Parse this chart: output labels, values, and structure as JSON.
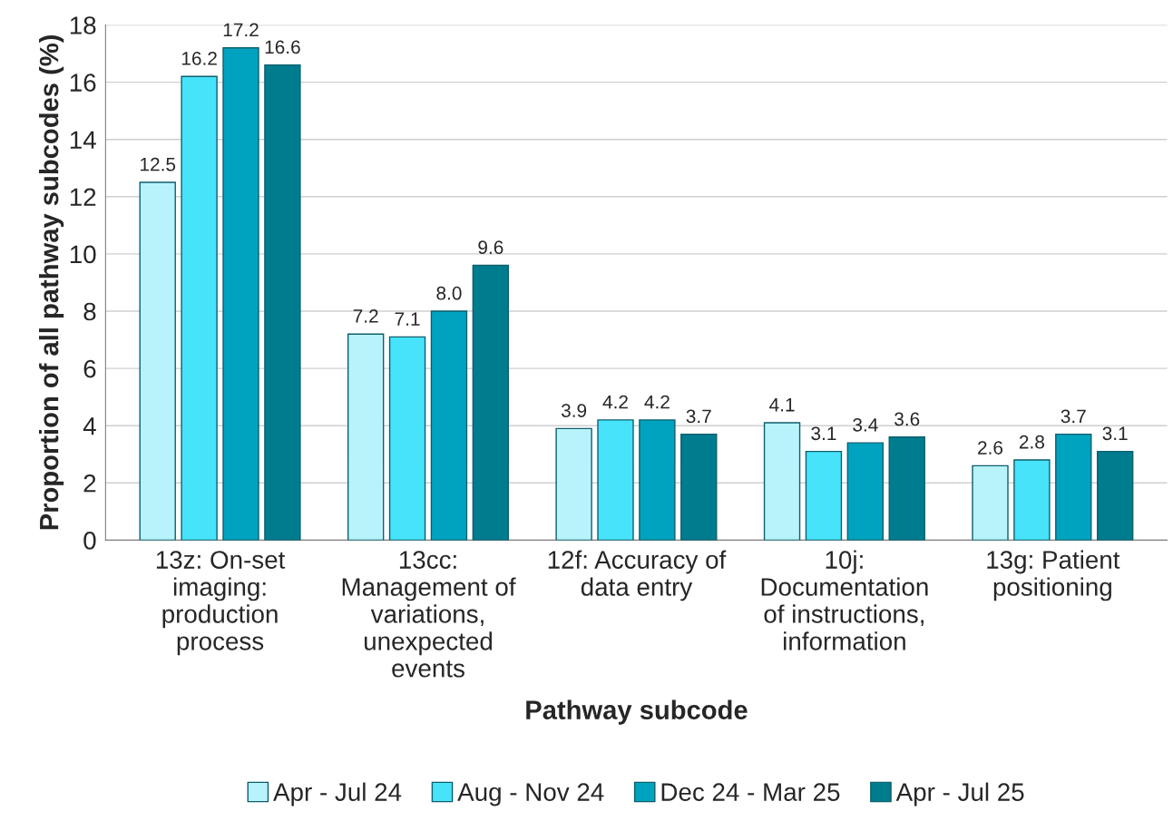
{
  "chart_data": {
    "type": "bar",
    "xlabel": "Pathway subcode",
    "ylabel": "Proportion of all pathway subcodes (%)",
    "categories": [
      "13z: On-set\nimaging:\nproduction\nprocess",
      "13cc:\nManagement of\nvariations,\nunexpected\nevents",
      "12f: Accuracy of\ndata entry",
      "10j:\nDocumentation\nof instructions,\ninformation",
      "13g: Patient\npositioning"
    ],
    "series": [
      {
        "name": "Apr - Jul 24",
        "color": "#b8f3fb",
        "values": [
          12.5,
          7.2,
          3.9,
          4.1,
          2.6
        ],
        "value_labels": [
          "12.5",
          "7.2",
          "3.9",
          "4.1",
          "2.6"
        ]
      },
      {
        "name": "Aug - Nov 24",
        "color": "#47e3fb",
        "values": [
          16.2,
          7.1,
          4.2,
          3.1,
          2.8
        ],
        "value_labels": [
          "16.2",
          "7.1",
          "4.2",
          "3.1",
          "2.8"
        ]
      },
      {
        "name": "Dec 24 - Mar 25",
        "color": "#00a3bf",
        "values": [
          17.2,
          8.0,
          4.2,
          3.4,
          3.7
        ],
        "value_labels": [
          "17.2",
          "8.0",
          "4.2",
          "3.4",
          "3.7"
        ]
      },
      {
        "name": "Apr - Jul 25",
        "color": "#007c8f",
        "values": [
          16.6,
          9.6,
          3.7,
          3.6,
          3.1
        ],
        "value_labels": [
          "16.6",
          "9.6",
          "3.7",
          "3.6",
          "3.1"
        ]
      }
    ],
    "ylim": [
      0,
      18
    ],
    "yticks": [
      0,
      2,
      4,
      6,
      8,
      10,
      12,
      14,
      16,
      18
    ],
    "grid": "y",
    "legend": "bottom"
  }
}
